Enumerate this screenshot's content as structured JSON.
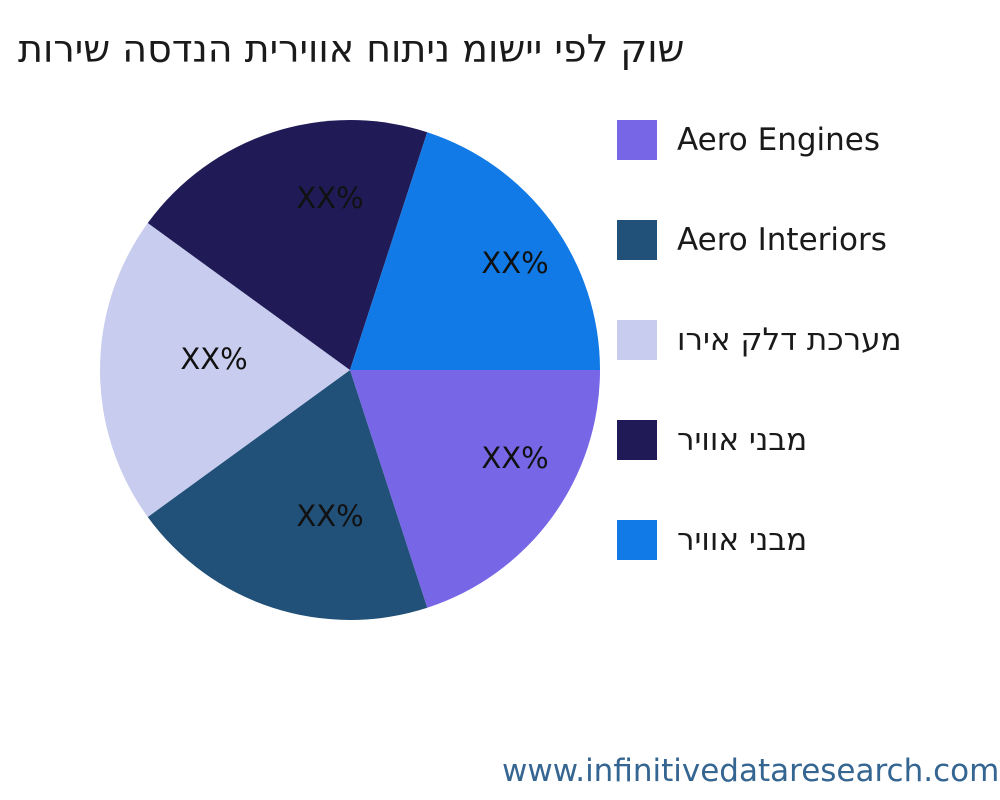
{
  "watermark": {
    "text": "www.infinitivedataresearch.com",
    "color": "#356591"
  },
  "chart_data": {
    "type": "pie",
    "title": "תוריש הסדנה תיריווא חותינ מושיי יפל קוש",
    "title_translation_note": "reversed-Hebrew rendering of: market analysis by application for aviation engineering services",
    "start_angle_deg": 0,
    "direction": "clockwise",
    "legend_position": "right",
    "slices": [
      {
        "label": "Aero Engines",
        "value_label": "XX%",
        "value": 20,
        "color": "#7767E7"
      },
      {
        "label": "Aero Interiors",
        "value_label": "XX%",
        "value": 20,
        "color": "#215078"
      },
      {
        "label": "וריא קלד תכרעמ",
        "value_label": "XX%",
        "value": 20,
        "color": "#C8CCEE"
      },
      {
        "label": "ריווא ינבמ",
        "value_label": "XX%",
        "value": 20,
        "color": "#201B57"
      },
      {
        "label": "ריווא ינבמ",
        "value_label": "XX%",
        "value": 20,
        "color": "#117AE7"
      }
    ]
  }
}
